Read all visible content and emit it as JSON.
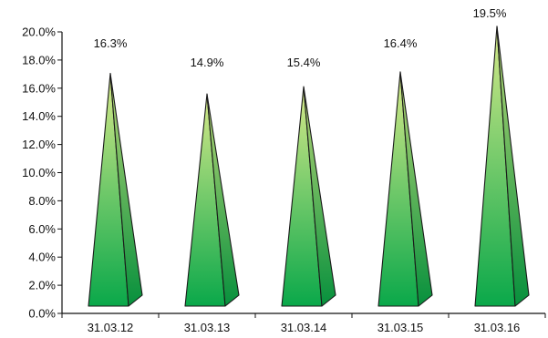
{
  "chart_data": {
    "type": "bar",
    "style": "3d-pyramid",
    "categories": [
      "31.03.12",
      "31.03.13",
      "31.03.14",
      "31.03.15",
      "31.03.16"
    ],
    "values": [
      16.3,
      14.9,
      15.4,
      16.4,
      19.5
    ],
    "data_labels": [
      "16.3%",
      "14.9%",
      "15.4%",
      "16.4%",
      "19.5%"
    ],
    "y_ticks": [
      "0.0%",
      "2.0%",
      "4.0%",
      "6.0%",
      "8.0%",
      "10.0%",
      "12.0%",
      "14.0%",
      "16.0%",
      "18.0%",
      "20.0%"
    ],
    "ylim": [
      0,
      20
    ],
    "grid": false,
    "legend": "none",
    "colors": {
      "top": "#d8ea8a",
      "bottom": "#0aa84a",
      "edge": "#1a1a1a"
    }
  }
}
